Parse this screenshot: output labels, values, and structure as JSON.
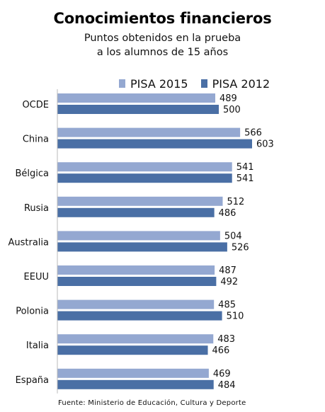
{
  "chart_data": {
    "type": "bar",
    "orientation": "horizontal",
    "title": "Conocimientos financieros",
    "subtitle": [
      "Puntos obtenidos en la prueba",
      "a los alumnos de 15 años"
    ],
    "categories": [
      "OCDE",
      "China",
      "Bélgica",
      "Rusia",
      "Australia",
      "EEUU",
      "Polonia",
      "Italia",
      "España"
    ],
    "series": [
      {
        "name": "PISA 2015",
        "color": "#94A8D1",
        "values": [
          489,
          566,
          541,
          512,
          504,
          487,
          485,
          483,
          469
        ]
      },
      {
        "name": "PISA 2012",
        "color": "#4A6FA5",
        "values": [
          500,
          603,
          541,
          486,
          526,
          492,
          510,
          466,
          484
        ]
      }
    ],
    "legend_position": "top",
    "grid": false,
    "xlim": [
      0,
      603
    ],
    "footnote": "Fuente: Ministerio de Educación, Cultura y Deporte"
  }
}
